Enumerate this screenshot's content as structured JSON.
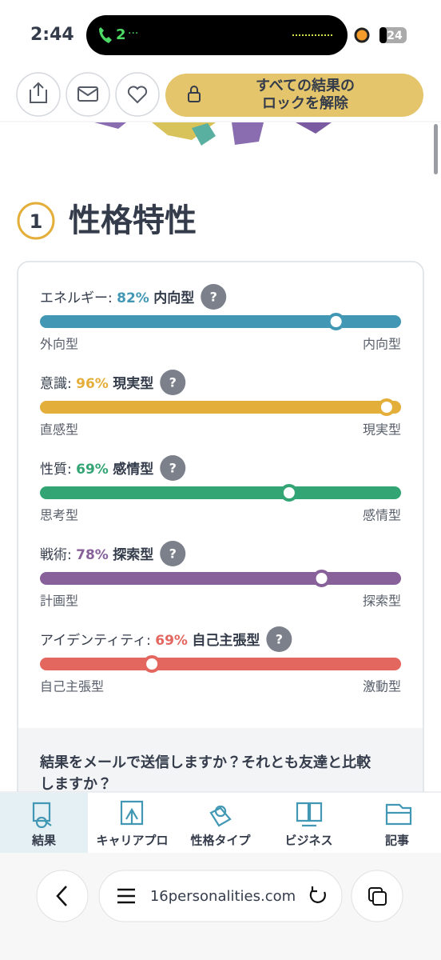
{
  "status": {
    "time": "2:44",
    "call": "2",
    "battery": "24"
  },
  "header": {
    "unlock_button": [
      "すべての結果の",
      "ロックを解除"
    ]
  },
  "section": {
    "number": "1",
    "title": "性格特性"
  },
  "traits": [
    {
      "name": "エネルギー:",
      "percent": {
        "value": 82,
        "label": "82%"
      },
      "type": "内向型",
      "left": "外向型",
      "right": "内向型",
      "color": "#4298b4"
    },
    {
      "name": "意識:",
      "percent": {
        "value": 96,
        "label": "96%"
      },
      "type": "現実型",
      "left": "直感型",
      "right": "現実型",
      "color": "#e4ae3a"
    },
    {
      "name": "性質:",
      "percent": {
        "value": 69,
        "label": "69%"
      },
      "type": "感情型",
      "left": "思考型",
      "right": "感情型",
      "color": "#33a474"
    },
    {
      "name": "戦術:",
      "percent": {
        "value": 78,
        "label": "78%"
      },
      "type": "探索型",
      "left": "計画型",
      "right": "探索型",
      "color": "#88619a"
    },
    {
      "name": "アイデンティティ:",
      "percent": {
        "value": 69,
        "label": "69%"
      },
      "type": "自己主張型",
      "left": "自己主張型",
      "right": "激動型",
      "color": "#e4675f"
    }
  ],
  "help_icon": "?",
  "share_prompt": [
    "結果をメールで送信しますか？それとも友達と比較",
    "しますか？"
  ],
  "nav": [
    "結果",
    "キャリアプロ",
    "性格タイプ",
    "ビジネス",
    "記事"
  ],
  "browser": {
    "url": "16personalities.com"
  }
}
